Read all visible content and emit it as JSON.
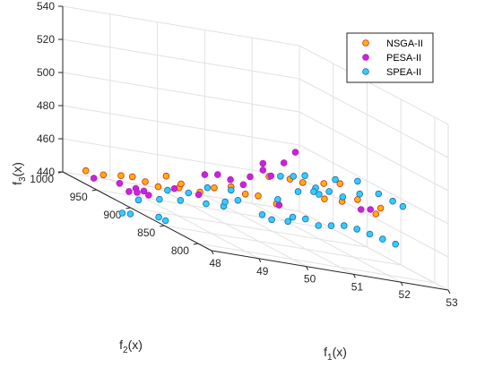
{
  "chart_data": {
    "type": "scatter",
    "dimensions": 3,
    "axes": {
      "x": {
        "label": "f",
        "sub": "1",
        "suffix": "(x)",
        "range": [
          48,
          53
        ],
        "ticks": [
          48,
          49,
          50,
          51,
          52,
          53
        ]
      },
      "y": {
        "label": "f",
        "sub": "2",
        "suffix": "(x)",
        "range": [
          780,
          1000
        ],
        "ticks": [
          800,
          850,
          900,
          950,
          1000
        ]
      },
      "z": {
        "label": "f",
        "sub": "3",
        "suffix": "(x)",
        "range": [
          440,
          540
        ],
        "ticks": [
          440,
          460,
          480,
          500,
          520,
          540
        ]
      }
    },
    "grid": true,
    "legend_placement": "top-right",
    "series": [
      {
        "name": "NSGA-II",
        "color": "#ffb000",
        "edge": "#d62728",
        "points": [
          [
            48.2,
            980,
            446
          ],
          [
            48.5,
            975,
            446
          ],
          [
            48.8,
            970,
            448
          ],
          [
            48.9,
            960,
            450
          ],
          [
            49.1,
            955,
            449
          ],
          [
            49.3,
            950,
            448
          ],
          [
            49.4,
            945,
            456
          ],
          [
            49.6,
            940,
            451
          ],
          [
            49.9,
            930,
            452
          ],
          [
            50.2,
            930,
            456
          ],
          [
            50.2,
            905,
            462
          ],
          [
            50.5,
            905,
            459
          ],
          [
            50.7,
            900,
            460
          ],
          [
            51.0,
            905,
            472
          ],
          [
            51.3,
            895,
            474
          ],
          [
            51.5,
            890,
            474
          ],
          [
            51.8,
            880,
            477
          ],
          [
            52.0,
            870,
            480
          ],
          [
            51.6,
            865,
            470
          ],
          [
            51.9,
            860,
            471
          ],
          [
            52.2,
            858,
            474
          ],
          [
            52.5,
            852,
            468
          ],
          [
            52.6,
            852,
            472
          ],
          [
            50.8,
            880,
            460
          ],
          [
            49.5,
            930,
            455
          ]
        ]
      },
      {
        "name": "PESA-II",
        "color": "#cc22dd",
        "edge": "#aa1fb8",
        "points": [
          [
            48.3,
            975,
            443
          ],
          [
            48.7,
            965,
            444
          ],
          [
            48.9,
            955,
            444
          ],
          [
            49.0,
            950,
            444
          ],
          [
            49.1,
            950,
            442
          ],
          [
            49.5,
            940,
            450
          ],
          [
            49.8,
            925,
            451
          ],
          [
            50.0,
            930,
            463
          ],
          [
            50.2,
            925,
            465
          ],
          [
            50.4,
            920,
            464
          ],
          [
            50.6,
            915,
            463
          ],
          [
            50.6,
            905,
            470
          ],
          [
            50.8,
            900,
            480
          ],
          [
            50.8,
            900,
            476
          ],
          [
            50.9,
            895,
            474
          ],
          [
            51.1,
            890,
            484
          ],
          [
            51.2,
            880,
            493
          ],
          [
            51.0,
            890,
            458
          ],
          [
            52.3,
            860,
            468
          ],
          [
            52.5,
            860,
            469
          ],
          [
            49.0,
            960,
            441
          ],
          [
            48.9,
            965,
            440
          ]
        ]
      },
      {
        "name": "SPEA-II",
        "color": "#33ccff",
        "edge": "#1f6aa6",
        "points": [
          [
            48.4,
            940,
            430
          ],
          [
            48.5,
            935,
            431
          ],
          [
            48.6,
            930,
            441
          ],
          [
            48.9,
            920,
            445
          ],
          [
            49.2,
            910,
            448
          ],
          [
            49.0,
            915,
            452
          ],
          [
            49.3,
            905,
            454
          ],
          [
            49.6,
            900,
            450
          ],
          [
            49.9,
            895,
            451
          ],
          [
            49.1,
            925,
            432
          ],
          [
            49.0,
            928,
            433
          ],
          [
            50.0,
            900,
            453
          ],
          [
            50.2,
            895,
            456
          ],
          [
            50.5,
            880,
            452
          ],
          [
            50.7,
            880,
            450
          ],
          [
            50.9,
            870,
            452
          ],
          [
            51.0,
            870,
            455
          ],
          [
            51.2,
            865,
            456
          ],
          [
            51.4,
            860,
            454
          ],
          [
            51.6,
            855,
            456
          ],
          [
            51.8,
            850,
            458
          ],
          [
            52.0,
            845,
            458
          ],
          [
            52.2,
            840,
            457
          ],
          [
            52.4,
            835,
            456
          ],
          [
            52.6,
            830,
            455
          ],
          [
            50.6,
            860,
            480
          ],
          [
            50.8,
            855,
            482
          ],
          [
            51.0,
            852,
            484
          ],
          [
            51.2,
            850,
            478
          ],
          [
            51.3,
            860,
            474
          ],
          [
            51.6,
            858,
            476
          ],
          [
            51.8,
            852,
            475
          ],
          [
            52.1,
            848,
            479
          ],
          [
            52.6,
            855,
            480
          ],
          [
            52.8,
            848,
            478
          ],
          [
            52.9,
            840,
            477
          ],
          [
            51.4,
            890,
            468
          ],
          [
            51.7,
            880,
            470
          ],
          [
            50.9,
            885,
            462
          ],
          [
            50.2,
            905,
            460
          ],
          [
            49.8,
            912,
            458
          ],
          [
            51.9,
            870,
            482
          ],
          [
            52.3,
            865,
            484
          ]
        ]
      }
    ]
  }
}
